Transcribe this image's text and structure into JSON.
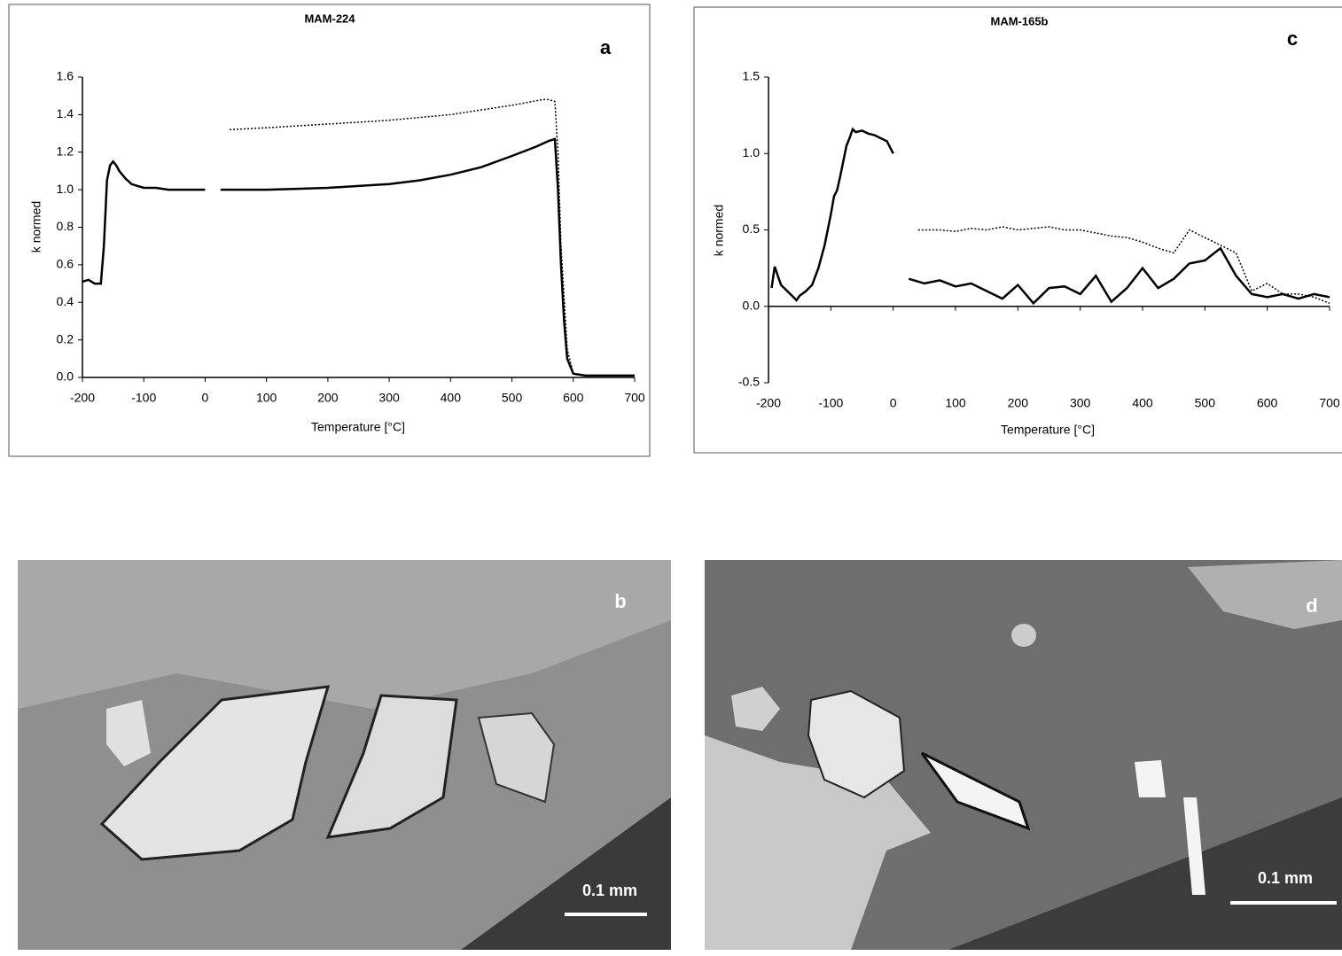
{
  "chart_data": [
    {
      "type": "line",
      "title": "MAM-224",
      "panel_label": "a",
      "x_label": "Temperature [°C]",
      "y_label": "k normed",
      "xlim": [
        -200,
        700
      ],
      "xticks": [
        -200,
        -100,
        0,
        100,
        200,
        300,
        400,
        500,
        600,
        700
      ],
      "ylim": [
        0,
        1.6
      ],
      "yticks": [
        {
          "value": 0,
          "label": "0.0"
        },
        0.2,
        0.4,
        0.6,
        0.8,
        {
          "value": 1,
          "label": "1.0"
        },
        1.2,
        1.4,
        1.6
      ],
      "grid": false,
      "series": [
        {
          "color": "#000000",
          "style": "solid",
          "x": [
            -200,
            -190,
            -180,
            -170,
            -165,
            -160,
            -155,
            -150,
            -145,
            -140,
            -130,
            -120,
            -110,
            -100,
            -80,
            -60,
            -40,
            -20,
            0
          ],
          "values": [
            0.51,
            0.52,
            0.5,
            0.5,
            0.7,
            1.05,
            1.13,
            1.15,
            1.13,
            1.1,
            1.06,
            1.03,
            1.02,
            1.01,
            1.01,
            1.0,
            1.0,
            1.0,
            1.0
          ]
        },
        {
          "color": "#000000",
          "style": "solid",
          "x": [
            25,
            50,
            100,
            150,
            200,
            250,
            300,
            350,
            400,
            450,
            500,
            540,
            560,
            570,
            575,
            580,
            585,
            590,
            600,
            620,
            650,
            700
          ],
          "values": [
            1.0,
            1.0,
            1.0,
            1.005,
            1.01,
            1.02,
            1.03,
            1.05,
            1.08,
            1.12,
            1.18,
            1.23,
            1.26,
            1.27,
            1.0,
            0.6,
            0.3,
            0.1,
            0.02,
            0.01,
            0.01,
            0.01
          ]
        },
        {
          "color": "#000000",
          "style": "dotted",
          "x": [
            40,
            100,
            200,
            300,
            400,
            500,
            550,
            560,
            570,
            575,
            580,
            590,
            600
          ],
          "values": [
            1.32,
            1.33,
            1.35,
            1.37,
            1.4,
            1.45,
            1.48,
            1.48,
            1.47,
            1.2,
            0.7,
            0.15,
            0.02
          ]
        }
      ]
    },
    {
      "type": "line",
      "title": "MAM-165b",
      "panel_label": "c",
      "x_label": "Temperature [°C]",
      "y_label": "k normed",
      "xlim": [
        -200,
        700
      ],
      "xticks": [
        -200,
        -100,
        0,
        100,
        200,
        300,
        400,
        500,
        600,
        700
      ],
      "ylim": [
        -0.5,
        1.5
      ],
      "yticks": [
        -0.5,
        {
          "value": 0,
          "label": "0.0"
        },
        0.5,
        {
          "value": 1,
          "label": "1.0"
        },
        1.5
      ],
      "grid": false,
      "series": [
        {
          "color": "#000000",
          "style": "solid",
          "x": [
            -195,
            -190,
            -185,
            -180,
            -170,
            -160,
            -155,
            -150,
            -140,
            -130,
            -120,
            -110,
            -100,
            -95,
            -90,
            -85,
            -80,
            -75,
            -70,
            -65,
            -60,
            -50,
            -40,
            -30,
            -20,
            -10,
            0
          ],
          "values": [
            0.12,
            0.26,
            0.2,
            0.14,
            0.1,
            0.06,
            0.04,
            0.07,
            0.1,
            0.14,
            0.25,
            0.4,
            0.6,
            0.72,
            0.76,
            0.85,
            0.95,
            1.05,
            1.1,
            1.16,
            1.14,
            1.15,
            1.13,
            1.12,
            1.1,
            1.08,
            1.0
          ]
        },
        {
          "color": "#000000",
          "style": "solid",
          "x": [
            25,
            50,
            75,
            100,
            125,
            150,
            175,
            200,
            225,
            250,
            275,
            300,
            325,
            350,
            375,
            400,
            425,
            450,
            475,
            500,
            525,
            550,
            575,
            600,
            625,
            650,
            675,
            700
          ],
          "values": [
            0.18,
            0.15,
            0.17,
            0.13,
            0.15,
            0.1,
            0.05,
            0.14,
            0.02,
            0.12,
            0.13,
            0.08,
            0.2,
            0.03,
            0.12,
            0.25,
            0.12,
            0.18,
            0.28,
            0.3,
            0.38,
            0.2,
            0.08,
            0.06,
            0.08,
            0.05,
            0.08,
            0.06
          ]
        },
        {
          "color": "#000000",
          "style": "dotted",
          "x": [
            40,
            75,
            100,
            125,
            150,
            175,
            200,
            225,
            250,
            275,
            300,
            325,
            350,
            375,
            400,
            425,
            450,
            475,
            500,
            525,
            550,
            575,
            600,
            625,
            650,
            675,
            700
          ],
          "values": [
            0.5,
            0.5,
            0.49,
            0.51,
            0.5,
            0.52,
            0.5,
            0.51,
            0.52,
            0.5,
            0.5,
            0.48,
            0.46,
            0.45,
            0.42,
            0.38,
            0.35,
            0.5,
            0.45,
            0.4,
            0.35,
            0.1,
            0.15,
            0.08,
            0.08,
            0.06,
            0.02
          ]
        }
      ]
    }
  ],
  "photos": [
    {
      "panel_label": "b",
      "scale_bar": "0.1 mm"
    },
    {
      "panel_label": "d",
      "scale_bar": "0.1 mm"
    }
  ]
}
